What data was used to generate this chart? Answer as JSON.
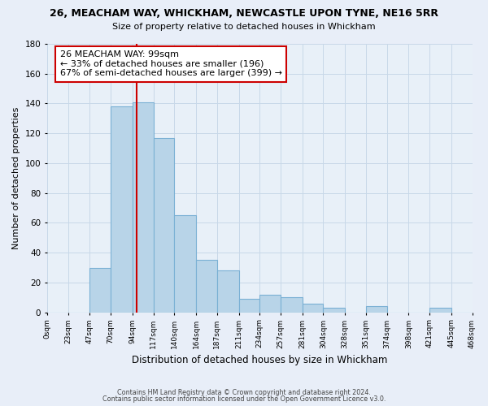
{
  "title": "26, MEACHAM WAY, WHICKHAM, NEWCASTLE UPON TYNE, NE16 5RR",
  "subtitle": "Size of property relative to detached houses in Whickham",
  "xlabel": "Distribution of detached houses by size in Whickham",
  "ylabel": "Number of detached properties",
  "bin_edges": [
    0,
    23,
    47,
    70,
    94,
    117,
    140,
    164,
    187,
    211,
    234,
    257,
    281,
    304,
    328,
    351,
    374,
    398,
    421,
    445,
    468
  ],
  "bar_heights": [
    0,
    0,
    30,
    138,
    141,
    117,
    65,
    35,
    28,
    9,
    12,
    10,
    6,
    3,
    0,
    4,
    0,
    0,
    3,
    0
  ],
  "bar_color": "#b8d4e8",
  "bar_edge_color": "#7ab0d4",
  "vline_x": 99,
  "vline_color": "#cc0000",
  "annotation_title": "26 MEACHAM WAY: 99sqm",
  "annotation_line1": "← 33% of detached houses are smaller (196)",
  "annotation_line2": "67% of semi-detached houses are larger (399) →",
  "tick_labels": [
    "0sqm",
    "23sqm",
    "47sqm",
    "70sqm",
    "94sqm",
    "117sqm",
    "140sqm",
    "164sqm",
    "187sqm",
    "211sqm",
    "234sqm",
    "257sqm",
    "281sqm",
    "304sqm",
    "328sqm",
    "351sqm",
    "374sqm",
    "398sqm",
    "421sqm",
    "445sqm",
    "468sqm"
  ],
  "ylim": [
    0,
    180
  ],
  "yticks": [
    0,
    20,
    40,
    60,
    80,
    100,
    120,
    140,
    160,
    180
  ],
  "footer1": "Contains HM Land Registry data © Crown copyright and database right 2024.",
  "footer2": "Contains public sector information licensed under the Open Government Licence v3.0.",
  "bg_color": "#e8eef8",
  "plot_bg_color": "#e8f0f8"
}
